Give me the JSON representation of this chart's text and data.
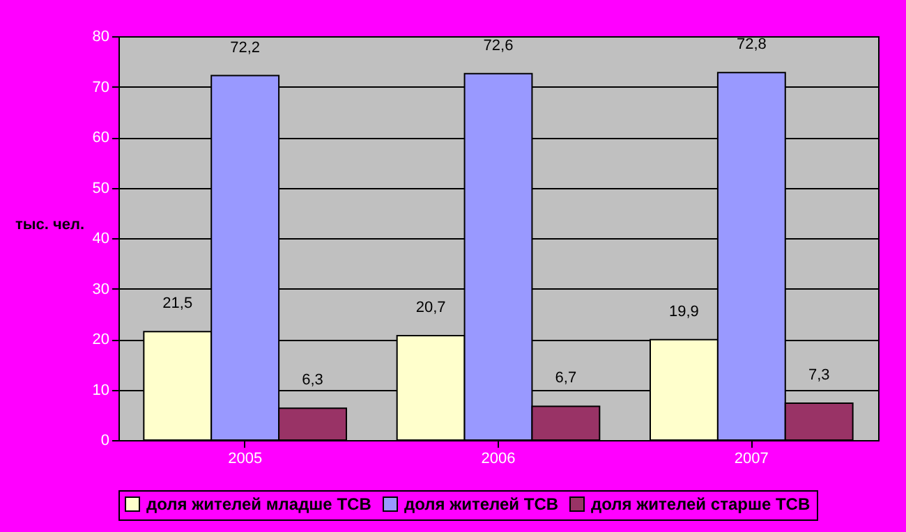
{
  "chart_data": {
    "type": "bar",
    "ylabel": "тыс. чел.",
    "categories": [
      "2005",
      "2006",
      "2007"
    ],
    "series": [
      {
        "name": "доля жителей младше ТСВ",
        "color": "#ffffcc",
        "values": [
          21.5,
          20.7,
          19.9
        ],
        "value_labels": [
          "21,5",
          "20,7",
          "19,9"
        ]
      },
      {
        "name": "доля жителей ТСВ",
        "color": "#9999ff",
        "values": [
          72.2,
          72.6,
          72.8
        ],
        "value_labels": [
          "72,2",
          "72,6",
          "72,8"
        ]
      },
      {
        "name": "доля жителей старше ТСВ",
        "color": "#993366",
        "values": [
          6.3,
          6.7,
          7.3
        ],
        "value_labels": [
          "6,3",
          "6,7",
          "7,3"
        ]
      }
    ],
    "ylim": [
      0,
      80
    ],
    "yticks": [
      0,
      10,
      20,
      30,
      40,
      50,
      60,
      70,
      80
    ],
    "grid": "y",
    "legend": "bottom"
  }
}
